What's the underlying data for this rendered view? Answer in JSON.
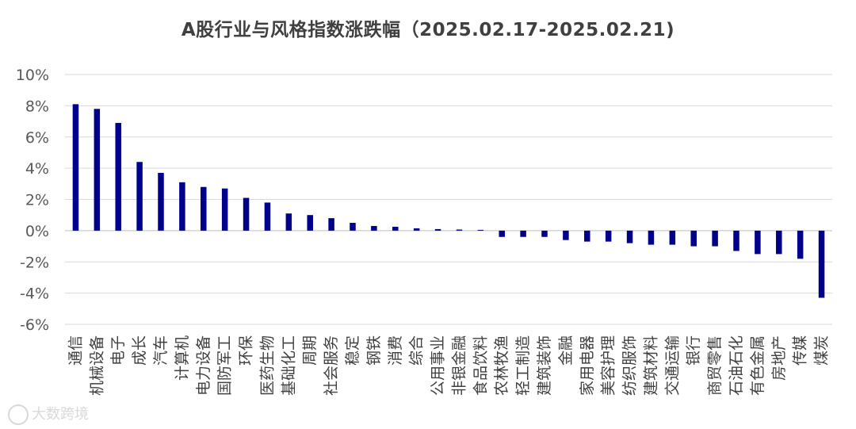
{
  "chart_data": {
    "type": "bar",
    "title": "A股行业与风格指数涨跌幅（2025.02.17-2025.02.21)",
    "xlabel": "",
    "ylabel": "",
    "ylim": [
      -0.06,
      0.1
    ],
    "yticks": [
      "10%",
      "8%",
      "6%",
      "4%",
      "2%",
      "0%",
      "-2%",
      "-4%",
      "-6%"
    ],
    "ytick_values": [
      0.1,
      0.08,
      0.06,
      0.04,
      0.02,
      0.0,
      -0.02,
      -0.04,
      -0.06
    ],
    "grid": true,
    "legend": "none",
    "bar_color": "#00008B",
    "categories": [
      "通信",
      "机械设备",
      "电子",
      "成长",
      "汽车",
      "计算机",
      "电力设备",
      "国防军工",
      "环保",
      "医药生物",
      "基础化工",
      "周期",
      "社会服务",
      "稳定",
      "钢铁",
      "消费",
      "综合",
      "公用事业",
      "非银金融",
      "食品饮料",
      "农林牧渔",
      "轻工制造",
      "建筑装饰",
      "金融",
      "家用电器",
      "美容护理",
      "纺织服饰",
      "建筑材料",
      "交通运输",
      "银行",
      "商贸零售",
      "石油石化",
      "有色金属",
      "房地产",
      "传媒",
      "煤炭"
    ],
    "values": [
      0.081,
      0.078,
      0.069,
      0.044,
      0.037,
      0.031,
      0.028,
      0.027,
      0.021,
      0.018,
      0.011,
      0.01,
      0.008,
      0.005,
      0.003,
      0.0025,
      0.0015,
      0.001,
      0.0007,
      0.0005,
      -0.004,
      -0.004,
      -0.004,
      -0.006,
      -0.007,
      -0.007,
      -0.008,
      -0.009,
      -0.009,
      -0.01,
      -0.01,
      -0.013,
      -0.015,
      -0.015,
      -0.018,
      -0.043
    ]
  },
  "watermark": "大数跨境"
}
